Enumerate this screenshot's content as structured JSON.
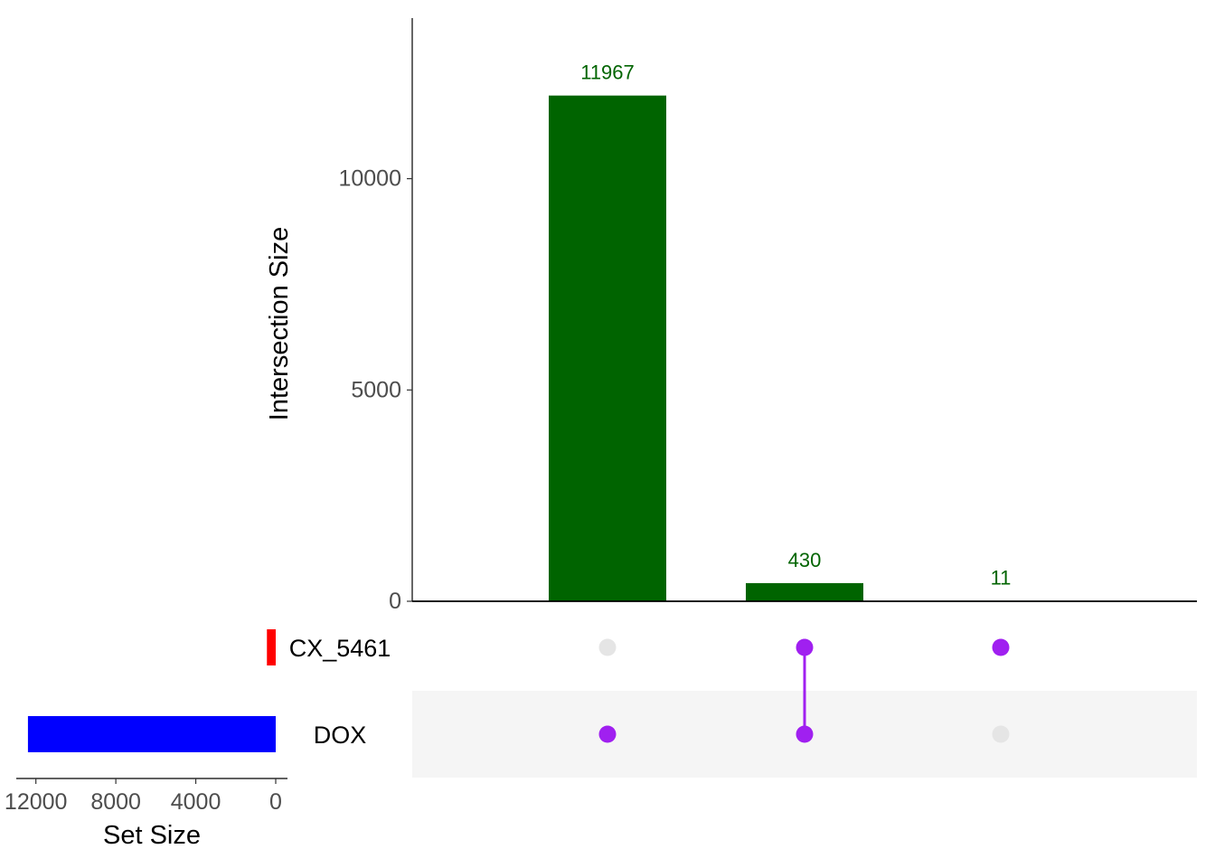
{
  "chart_data": {
    "type": "upset",
    "sets": [
      {
        "name": "CX_5461",
        "size": 441,
        "color": "#ff0000"
      },
      {
        "name": "DOX",
        "size": 12397,
        "color": "#0000ff"
      }
    ],
    "intersections": [
      {
        "members": [
          "DOX"
        ],
        "size": 11967,
        "label": "11967"
      },
      {
        "members": [
          "CX_5461",
          "DOX"
        ],
        "size": 430,
        "label": "430"
      },
      {
        "members": [
          "CX_5461"
        ],
        "size": 11,
        "label": "11"
      }
    ],
    "intersection_axis": {
      "title": "Intersection Size",
      "ylim": [
        0,
        13800
      ],
      "ticks": [
        0,
        5000,
        10000
      ],
      "tick_labels": [
        "0",
        "5000",
        "10000"
      ]
    },
    "set_size_axis": {
      "title": "Set Size",
      "xlim": [
        12800,
        0
      ],
      "ticks": [
        12000,
        8000,
        4000,
        0
      ],
      "tick_labels": [
        "12000",
        "8000",
        "4000",
        "0"
      ]
    },
    "colors": {
      "bar": "#006400",
      "bar_label": "#006400",
      "dot_active": "#a020f0",
      "dot_inactive": "#e5e5e5",
      "connector": "#a020f0",
      "row_shade": "#f5f5f5",
      "axis": "#000000"
    }
  }
}
